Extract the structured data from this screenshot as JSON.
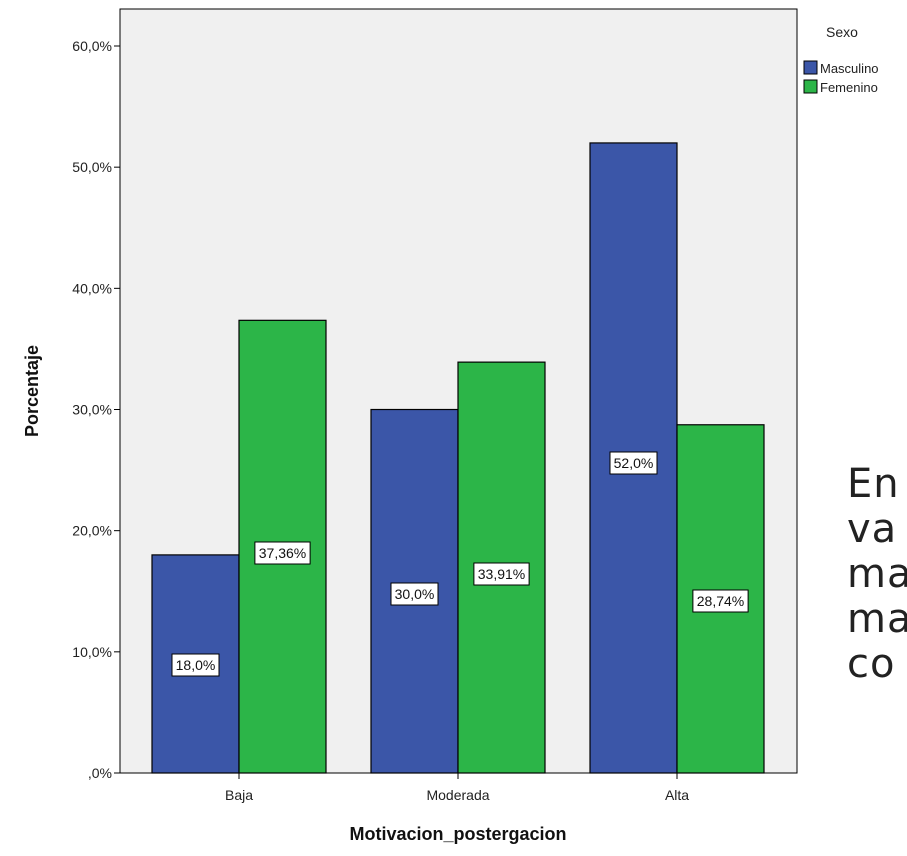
{
  "chart_data": {
    "type": "bar",
    "xlabel": "Motivacion_postergacion",
    "ylabel": "Porcentaje",
    "categories": [
      "Baja",
      "Moderada",
      "Alta"
    ],
    "ylim": [
      0,
      63
    ],
    "yticks": [
      {
        "value": 0,
        "label": ",0%"
      },
      {
        "value": 10,
        "label": "10,0%"
      },
      {
        "value": 20,
        "label": "20,0%"
      },
      {
        "value": 30,
        "label": "30,0%"
      },
      {
        "value": 40,
        "label": "40,0%"
      },
      {
        "value": 50,
        "label": "50,0%"
      },
      {
        "value": 60,
        "label": "60,0%"
      }
    ],
    "legend": {
      "title": "Sexo",
      "position": "top-right"
    },
    "series": [
      {
        "name": "Masculino",
        "color": "#3B56A8",
        "values": [
          18.0,
          30.0,
          52.0
        ],
        "labels": [
          "18,0%",
          "30,0%",
          "52,0%"
        ]
      },
      {
        "name": "Femenino",
        "color": "#2CB548",
        "values": [
          37.36,
          33.91,
          28.74
        ],
        "labels": [
          "37,36%",
          "33,91%",
          "28,74%"
        ]
      }
    ],
    "plot_background": "#F0F0F0",
    "grid": false
  },
  "side_text": {
    "lines": [
      "En",
      "va",
      "ma",
      "ma",
      "co"
    ]
  }
}
